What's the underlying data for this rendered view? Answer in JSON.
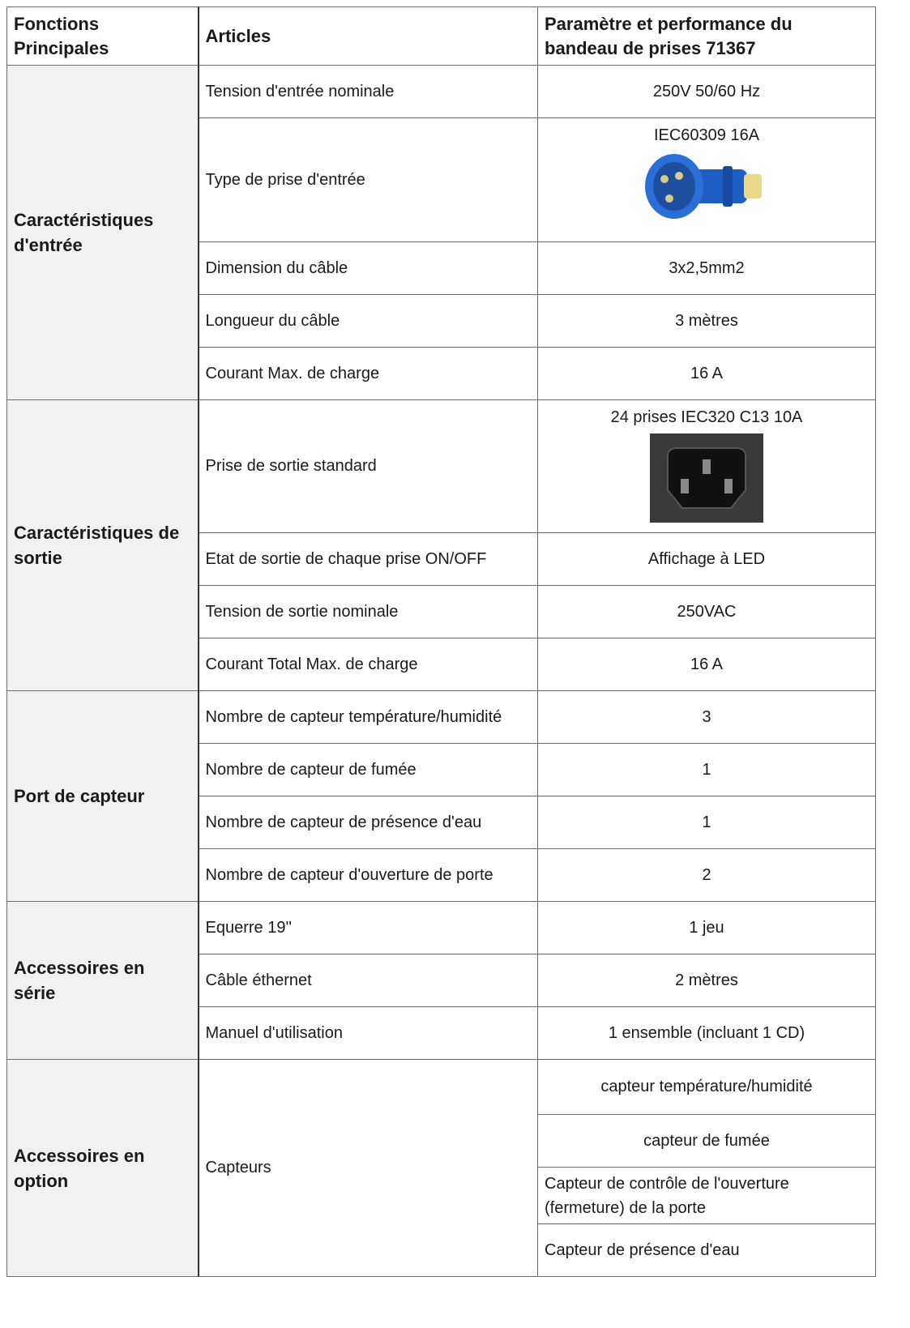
{
  "table": {
    "headers": [
      "Fonctions Principales",
      "Articles",
      "Paramètre et performance du bandeau de prises 71367"
    ],
    "groups": [
      {
        "name": "Caractéristiques d'entrée",
        "rows": [
          {
            "item": "Tension d'entrée nominale",
            "value": "250V 50/60  Hz"
          },
          {
            "item": "Type de prise d'entrée",
            "value": "IEC60309 16A"
          },
          {
            "item": "Dimension du câble",
            "value": "3x2,5mm2"
          },
          {
            "item": "Longueur du câble",
            "value": "3 mètres"
          },
          {
            "item": "Courant Max. de charge",
            "value": "16  A"
          }
        ]
      },
      {
        "name": "Caractéristiques de sortie",
        "rows": [
          {
            "item": "Prise de sortie standard",
            "value": "24 prises IEC320 C13 10A"
          },
          {
            "item": "Etat de sortie de chaque prise ON/OFF",
            "value": "Affichage  à LED"
          },
          {
            "item": "Tension de sortie nominale",
            "value": "250VAC"
          },
          {
            "item": "Courant Total Max. de charge",
            "value": "16  A"
          }
        ]
      },
      {
        "name": "Port de capteur",
        "rows": [
          {
            "item": "Nombre de capteur température/humidité",
            "value": "3"
          },
          {
            "item": "Nombre de capteur de fumée",
            "value": "1"
          },
          {
            "item": "Nombre de capteur de présence d'eau",
            "value": "1"
          },
          {
            "item": "Nombre de capteur d'ouverture  de porte",
            "value": "2"
          }
        ]
      },
      {
        "name": "Accessoires en série",
        "rows": [
          {
            "item": "Equerre 19''",
            "value": "1 jeu"
          },
          {
            "item": "Câble éthernet",
            "value": "2 mètres"
          },
          {
            "item": "Manuel d'utilisation",
            "value": "1 ensemble (incluant 1 CD)"
          }
        ]
      },
      {
        "name": "Accessoires en option",
        "rows": [
          {
            "item": "Capteurs",
            "values": [
              "capteur température/humidité",
              "capteur de fumée",
              "Capteur de contrôle de l'ouverture  (fermeture) de la porte",
              "Capteur de présence d'eau"
            ]
          }
        ]
      }
    ]
  }
}
